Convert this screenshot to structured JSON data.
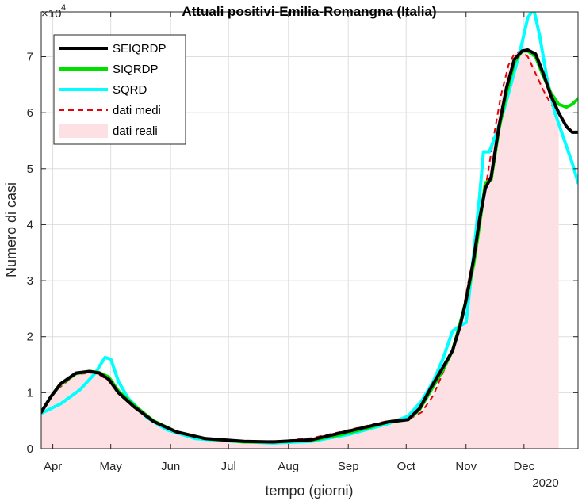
{
  "chart_data": {
    "type": "line",
    "title": "Attuali positivi-Emilia-Romangna (Italia)",
    "xlabel": "tempo (giorni)",
    "ylabel": "Numero di casi",
    "y_exponent_label": "×10",
    "y_exponent_power": "4",
    "year_label": "2020",
    "xlim": [
      0,
      278
    ],
    "ylim": [
      0,
      78000
    ],
    "grid": true,
    "legend_position": "top-left",
    "x_ticks": [
      {
        "label": "Apr",
        "day": 6
      },
      {
        "label": "May",
        "day": 36
      },
      {
        "label": "Jun",
        "day": 67
      },
      {
        "label": "Jul",
        "day": 97
      },
      {
        "label": "Aug",
        "day": 128
      },
      {
        "label": "Sep",
        "day": 159
      },
      {
        "label": "Oct",
        "day": 189
      },
      {
        "label": "Nov",
        "day": 220
      },
      {
        "label": "Dec",
        "day": 250
      }
    ],
    "y_ticks": [
      {
        "label": "0",
        "value": 0
      },
      {
        "label": "1",
        "value": 10000
      },
      {
        "label": "2",
        "value": 20000
      },
      {
        "label": "3",
        "value": 30000
      },
      {
        "label": "4",
        "value": 40000
      },
      {
        "label": "5",
        "value": 50000
      },
      {
        "label": "6",
        "value": 60000
      },
      {
        "label": "7",
        "value": 70000
      }
    ],
    "series": [
      {
        "name": "dati reali",
        "style": "area",
        "color": "#fde0e3",
        "x": [
          0,
          8,
          18,
          28,
          34,
          40,
          50,
          60,
          70,
          80,
          95,
          110,
          125,
          140,
          155,
          170,
          180,
          190,
          197,
          203,
          208,
          213,
          218,
          223,
          227,
          231,
          234,
          238,
          242,
          245,
          248,
          252,
          256,
          260,
          264,
          268
        ],
        "y": [
          6500,
          10500,
          13200,
          13700,
          12600,
          10000,
          7000,
          4500,
          3000,
          2000,
          1500,
          1300,
          1400,
          1900,
          3000,
          4200,
          5000,
          5200,
          6500,
          9500,
          13500,
          17500,
          24000,
          33000,
          41000,
          48500,
          54000,
          62000,
          68000,
          70500,
          71000,
          70500,
          68000,
          65000,
          62000,
          60000
        ]
      },
      {
        "name": "dati medi",
        "style": "dashed",
        "color": "#e8000b",
        "x": [
          0,
          8,
          18,
          28,
          34,
          40,
          50,
          60,
          70,
          80,
          95,
          110,
          125,
          140,
          155,
          170,
          180,
          190,
          197,
          203,
          208,
          213,
          218,
          223,
          227,
          231,
          234,
          238,
          242,
          245,
          248,
          252,
          256,
          260,
          264,
          268
        ],
        "y": [
          6500,
          10500,
          13300,
          13600,
          12400,
          10200,
          7200,
          4600,
          3000,
          2000,
          1500,
          1300,
          1400,
          1900,
          3000,
          4200,
          5000,
          5200,
          6500,
          9500,
          13500,
          17500,
          24000,
          33000,
          41000,
          48500,
          55000,
          63000,
          68500,
          70500,
          71000,
          70000,
          67000,
          64000,
          61500,
          60000
        ]
      },
      {
        "name": "SQRD",
        "style": "solid",
        "color": "#00ffff",
        "x": [
          0,
          10,
          20,
          28,
          33,
          36,
          40,
          45,
          55,
          65,
          80,
          100,
          120,
          140,
          160,
          180,
          190,
          197,
          203,
          208,
          213,
          217,
          220,
          224,
          227,
          229,
          232,
          236,
          240,
          244,
          248,
          252,
          255,
          258,
          262,
          266,
          270,
          275,
          278
        ],
        "y": [
          6300,
          8000,
          10500,
          13500,
          16300,
          16000,
          12000,
          9000,
          5500,
          3400,
          1800,
          1300,
          1000,
          1300,
          2600,
          4500,
          5800,
          8500,
          12000,
          16000,
          21000,
          22000,
          22500,
          35000,
          45000,
          53000,
          53000,
          56500,
          61000,
          66000,
          71000,
          77000,
          78500,
          74000,
          66000,
          60000,
          56000,
          51000,
          47500
        ]
      },
      {
        "name": "SIQRDP",
        "style": "solid",
        "color": "#00e000",
        "x": [
          0,
          5,
          10,
          18,
          25,
          30,
          35,
          40,
          48,
          58,
          70,
          85,
          105,
          120,
          140,
          155,
          170,
          180,
          190,
          196,
          202,
          208,
          213,
          217,
          220,
          224,
          227,
          230,
          233,
          237,
          241,
          245,
          249,
          252,
          256,
          260,
          264,
          268,
          272,
          275,
          278
        ],
        "y": [
          6500,
          9300,
          11500,
          13400,
          13800,
          13600,
          12800,
          10300,
          7800,
          5000,
          3000,
          1800,
          1200,
          1200,
          1500,
          2500,
          3800,
          4800,
          5200,
          7000,
          10500,
          14000,
          17500,
          22500,
          26500,
          33000,
          40000,
          47500,
          48000,
          57000,
          63500,
          69000,
          71000,
          71000,
          70000,
          66500,
          63500,
          61500,
          61000,
          61500,
          62500
        ]
      },
      {
        "name": "SEIQRDP",
        "style": "solid",
        "color": "#000000",
        "x": [
          0,
          5,
          10,
          18,
          25,
          30,
          35,
          40,
          48,
          58,
          70,
          85,
          105,
          120,
          140,
          155,
          170,
          180,
          190,
          196,
          202,
          208,
          213,
          217,
          220,
          224,
          227,
          230,
          233,
          237,
          241,
          245,
          249,
          252,
          256,
          260,
          264,
          268,
          272,
          275,
          278
        ],
        "y": [
          6500,
          9300,
          11600,
          13500,
          13800,
          13500,
          12400,
          10000,
          7500,
          4900,
          3000,
          1800,
          1300,
          1200,
          1600,
          2800,
          4000,
          4800,
          5200,
          7200,
          11000,
          14500,
          17500,
          22000,
          26500,
          34000,
          41000,
          46500,
          48500,
          57500,
          64500,
          69500,
          71000,
          71200,
          70500,
          67000,
          63000,
          60000,
          57500,
          56500,
          56500
        ]
      }
    ],
    "legend": [
      {
        "label": "SEIQRDP",
        "style": "solid",
        "color": "#000000"
      },
      {
        "label": "SIQRDP",
        "style": "solid",
        "color": "#00e000"
      },
      {
        "label": "SQRD",
        "style": "solid",
        "color": "#00ffff"
      },
      {
        "label": "dati medi",
        "style": "dashed",
        "color": "#e8000b"
      },
      {
        "label": "dati reali",
        "style": "area",
        "color": "#fde0e3"
      }
    ]
  }
}
